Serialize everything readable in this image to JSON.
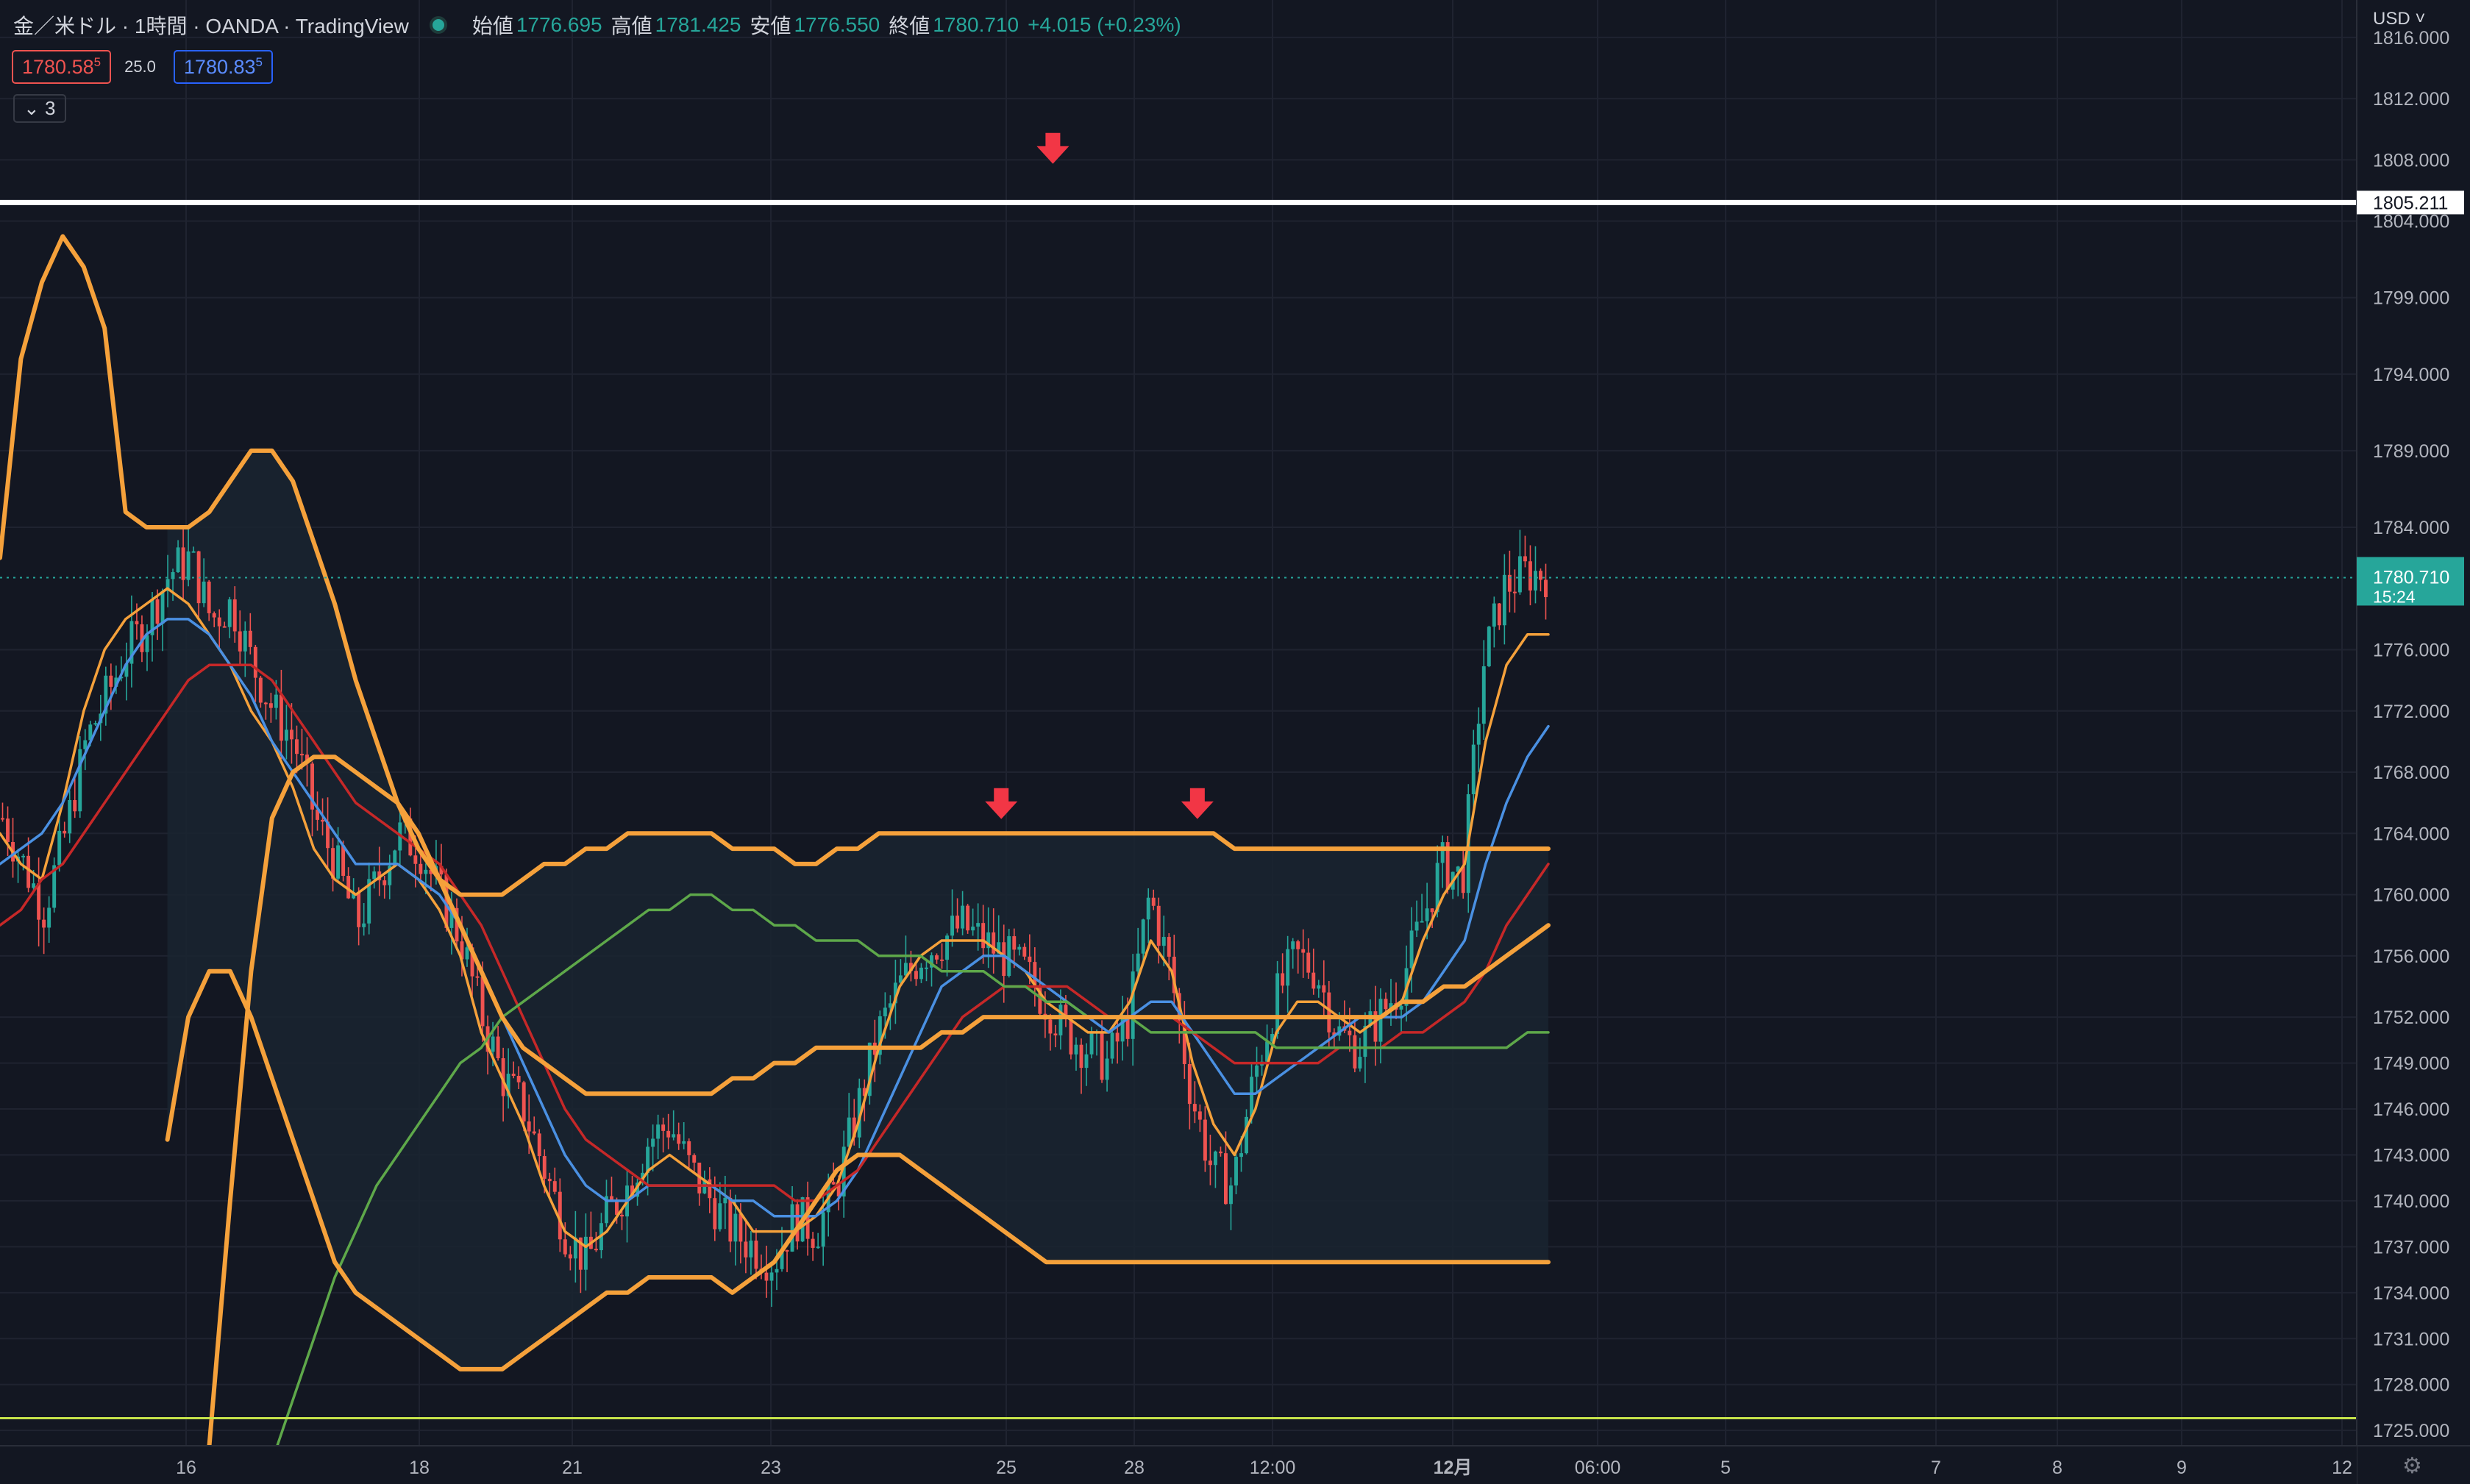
{
  "header": {
    "symbol": "金／米ドル · 1時間 · OANDA · TradingView",
    "open_label": "始値",
    "open": "1776.695",
    "high_label": "高値",
    "high": "1781.425",
    "low_label": "安値",
    "low": "1776.550",
    "close_label": "終値",
    "close": "1780.710",
    "change": "+4.015 (+0.23%)"
  },
  "quotes": {
    "sell": "1780.58",
    "sell_sup": "5",
    "spread": "25.0",
    "buy": "1780.83",
    "buy_sup": "5"
  },
  "indicators_toggle": {
    "icon": "chevron-down-icon",
    "count": "3"
  },
  "price_axis": {
    "currency": "USD",
    "settings_icon": "gear-icon",
    "tick_labels": [
      "1816.000",
      "1812.000",
      "1808.000",
      "1804.000",
      "1799.000",
      "1794.000",
      "1789.000",
      "1784.000",
      "1776.000",
      "1772.000",
      "1768.000",
      "1764.000",
      "1760.000",
      "1756.000",
      "1752.000",
      "1749.000",
      "1746.000",
      "1743.000",
      "1740.000",
      "1737.000",
      "1734.000",
      "1731.000",
      "1728.000",
      "1725.000"
    ],
    "resistance_label": "1805.211",
    "last_price_label": "1780.710",
    "countdown": "15:24"
  },
  "time_axis": {
    "tick_labels": [
      "16",
      "18",
      "21",
      "23",
      "25",
      "28",
      "12:00",
      "12月",
      "06:00",
      "5",
      "7",
      "8",
      "9",
      "12"
    ]
  },
  "colors": {
    "background": "#131722",
    "up": "#26a69a",
    "down": "#ef5350",
    "bollinger": "#f5a13b",
    "ma_blue": "#4a90e2",
    "ma_red": "#c62828",
    "ma_green": "#5ea84a",
    "support_line": "#c6e34a",
    "resistance_line": "#ffffff",
    "arrow": "#f23645"
  },
  "chart_data": {
    "type": "candlestick",
    "instrument": "金／米ドル",
    "timeframe": "1時間",
    "broker": "OANDA",
    "ylim": [
      1724.0,
      1817.0
    ],
    "x_tick_labels": [
      "16",
      "18",
      "21",
      "23",
      "25",
      "28",
      "12:00",
      "12月",
      "06:00",
      "5",
      "7",
      "8",
      "9",
      "12"
    ],
    "horizontal_lines": [
      {
        "price": 1805.211,
        "color": "#ffffff",
        "labeled": true
      },
      {
        "price": 1725.8,
        "color": "#c6e34a",
        "labeled": false
      }
    ],
    "last_price": 1780.71,
    "markers": [
      {
        "type": "down-arrow",
        "bar": 102,
        "price": 1808.7
      },
      {
        "type": "down-arrow",
        "bar": 97,
        "price": 1765.9
      },
      {
        "type": "down-arrow",
        "bar": 116,
        "price": 1765.9
      }
    ],
    "candles_key_prices": [
      1765,
      1762,
      1759,
      1764,
      1770,
      1773,
      1776,
      1778,
      1781,
      1782,
      1778,
      1779,
      1775,
      1772,
      1770,
      1765,
      1762,
      1758,
      1761,
      1764,
      1763,
      1760,
      1757,
      1752,
      1748,
      1746,
      1742,
      1738,
      1736,
      1739,
      1741,
      1744,
      1745,
      1742,
      1740,
      1738,
      1737,
      1736,
      1739,
      1738,
      1741,
      1746,
      1751,
      1754,
      1756,
      1757,
      1758,
      1757,
      1756,
      1755,
      1753,
      1751,
      1750,
      1749,
      1752,
      1760,
      1755,
      1747,
      1742,
      1741,
      1748,
      1753,
      1756,
      1755,
      1751,
      1750,
      1752,
      1754,
      1758,
      1762,
      1761,
      1775,
      1780,
      1781,
      1781
    ],
    "series": [
      {
        "type": "ma",
        "color": "#f5a13b",
        "values": [
          1764,
          1762,
          1761,
          1766,
          1772,
          1776,
          1778,
          1779,
          1780,
          1779,
          1777,
          1775,
          1772,
          1770,
          1767,
          1763,
          1761,
          1760,
          1761,
          1762,
          1761,
          1759,
          1756,
          1751,
          1748,
          1745,
          1741,
          1738,
          1737,
          1738,
          1740,
          1742,
          1743,
          1742,
          1741,
          1740,
          1738,
          1738,
          1738,
          1739,
          1741,
          1745,
          1750,
          1754,
          1756,
          1757,
          1757,
          1757,
          1756,
          1755,
          1753,
          1752,
          1751,
          1751,
          1753,
          1757,
          1755,
          1749,
          1745,
          1743,
          1746,
          1751,
          1753,
          1753,
          1752,
          1751,
          1752,
          1753,
          1757,
          1760,
          1762,
          1770,
          1775,
          1777,
          1777
        ]
      },
      {
        "type": "ma",
        "color": "#4a90e2",
        "values": [
          1762,
          1763,
          1764,
          1766,
          1769,
          1772,
          1775,
          1777,
          1778,
          1778,
          1777,
          1775,
          1773,
          1770,
          1768,
          1766,
          1764,
          1762,
          1762,
          1762,
          1761,
          1760,
          1758,
          1755,
          1752,
          1749,
          1746,
          1743,
          1741,
          1740,
          1740,
          1741,
          1741,
          1741,
          1741,
          1740,
          1740,
          1739,
          1739,
          1739,
          1740,
          1742,
          1745,
          1748,
          1751,
          1754,
          1755,
          1756,
          1756,
          1755,
          1754,
          1753,
          1752,
          1751,
          1752,
          1753,
          1753,
          1751,
          1749,
          1747,
          1747,
          1748,
          1749,
          1750,
          1751,
          1752,
          1752,
          1752,
          1753,
          1755,
          1757,
          1762,
          1766,
          1769,
          1771
        ]
      },
      {
        "type": "ma",
        "color": "#c62828",
        "values": [
          1758,
          1759,
          1761,
          1762,
          1764,
          1766,
          1768,
          1770,
          1772,
          1774,
          1775,
          1775,
          1775,
          1774,
          1772,
          1770,
          1768,
          1766,
          1765,
          1764,
          1763,
          1762,
          1760,
          1758,
          1755,
          1752,
          1749,
          1746,
          1744,
          1743,
          1742,
          1741,
          1741,
          1741,
          1741,
          1741,
          1741,
          1741,
          1740,
          1740,
          1741,
          1742,
          1744,
          1746,
          1748,
          1750,
          1752,
          1753,
          1754,
          1754,
          1754,
          1754,
          1753,
          1752,
          1752,
          1752,
          1752,
          1751,
          1750,
          1749,
          1749,
          1749,
          1749,
          1749,
          1750,
          1750,
          1750,
          1751,
          1751,
          1752,
          1753,
          1755,
          1758,
          1760,
          1762
        ]
      },
      {
        "type": "ma",
        "color": "#5ea84a",
        "values": [
          null,
          null,
          null,
          null,
          null,
          null,
          null,
          null,
          null,
          null,
          null,
          null,
          null,
          1723,
          1727,
          1731,
          1735,
          1738,
          1741,
          1743,
          1745,
          1747,
          1749,
          1750,
          1752,
          1753,
          1754,
          1755,
          1756,
          1757,
          1758,
          1759,
          1759,
          1760,
          1760,
          1759,
          1759,
          1758,
          1758,
          1757,
          1757,
          1757,
          1756,
          1756,
          1756,
          1755,
          1755,
          1755,
          1754,
          1754,
          1753,
          1753,
          1752,
          1752,
          1752,
          1751,
          1751,
          1751,
          1751,
          1751,
          1751,
          1750,
          1750,
          1750,
          1750,
          1750,
          1750,
          1750,
          1750,
          1750,
          1750,
          1750,
          1750,
          1751,
          1751
        ]
      },
      {
        "type": "bollinger_upper_inner",
        "color": "#f5a13b",
        "values": [
          null,
          null,
          null,
          null,
          null,
          null,
          null,
          null,
          null,
          null,
          1724,
          1740,
          1755,
          1765,
          1768,
          1769,
          1769,
          1768,
          1767,
          1766,
          1764,
          1761,
          1758,
          1755,
          1752,
          1750,
          1749,
          1748,
          1747,
          1747,
          1747,
          1747,
          1747,
          1747,
          1747,
          1748,
          1748,
          1749,
          1749,
          1750,
          1750,
          1750,
          1750,
          1750,
          1750,
          1751,
          1751,
          1752,
          1752,
          1752,
          1752,
          1752,
          1752,
          1752,
          1752,
          1752,
          1752,
          1752,
          1752,
          1752,
          1752,
          1752,
          1752,
          1752,
          1752,
          1752,
          1752,
          1753,
          1753,
          1754,
          1754,
          1755,
          1756,
          1757,
          1758
        ]
      },
      {
        "type": "bollinger_upper",
        "color": "#f5a13b",
        "values": [
          1782,
          1795,
          1800,
          1803,
          1801,
          1797,
          1785,
          1784,
          1784,
          1784,
          1785,
          1787,
          1789,
          1789,
          1787,
          1783,
          1779,
          1774,
          1770,
          1766,
          1763,
          1761,
          1760,
          1760,
          1760,
          1761,
          1762,
          1762,
          1763,
          1763,
          1764,
          1764,
          1764,
          1764,
          1764,
          1763,
          1763,
          1763,
          1762,
          1762,
          1763,
          1763,
          1764,
          1764,
          1764,
          1764,
          1764,
          1764,
          1764,
          1764,
          1764,
          1764,
          1764,
          1764,
          1764,
          1764,
          1764,
          1764,
          1764,
          1763,
          1763,
          1763,
          1763,
          1763,
          1763,
          1763,
          1763,
          1763,
          1763,
          1763,
          1763,
          1763,
          1763,
          1763,
          1763
        ]
      },
      {
        "type": "bollinger_lower",
        "color": "#f5a13b",
        "values": [
          null,
          null,
          null,
          null,
          null,
          null,
          null,
          null,
          1744,
          1752,
          1755,
          1755,
          1752,
          1748,
          1744,
          1740,
          1736,
          1734,
          1733,
          1732,
          1731,
          1730,
          1729,
          1729,
          1729,
          1730,
          1731,
          1732,
          1733,
          1734,
          1734,
          1735,
          1735,
          1735,
          1735,
          1734,
          1735,
          1736,
          1738,
          1740,
          1742,
          1743,
          1743,
          1743,
          1742,
          1741,
          1740,
          1739,
          1738,
          1737,
          1736,
          1736,
          1736,
          1736,
          1736,
          1736,
          1736,
          1736,
          1736,
          1736,
          1736,
          1736,
          1736,
          1736,
          1736,
          1736,
          1736,
          1736,
          1736,
          1736,
          1736,
          1736,
          1736,
          1736,
          1736
        ]
      }
    ]
  }
}
